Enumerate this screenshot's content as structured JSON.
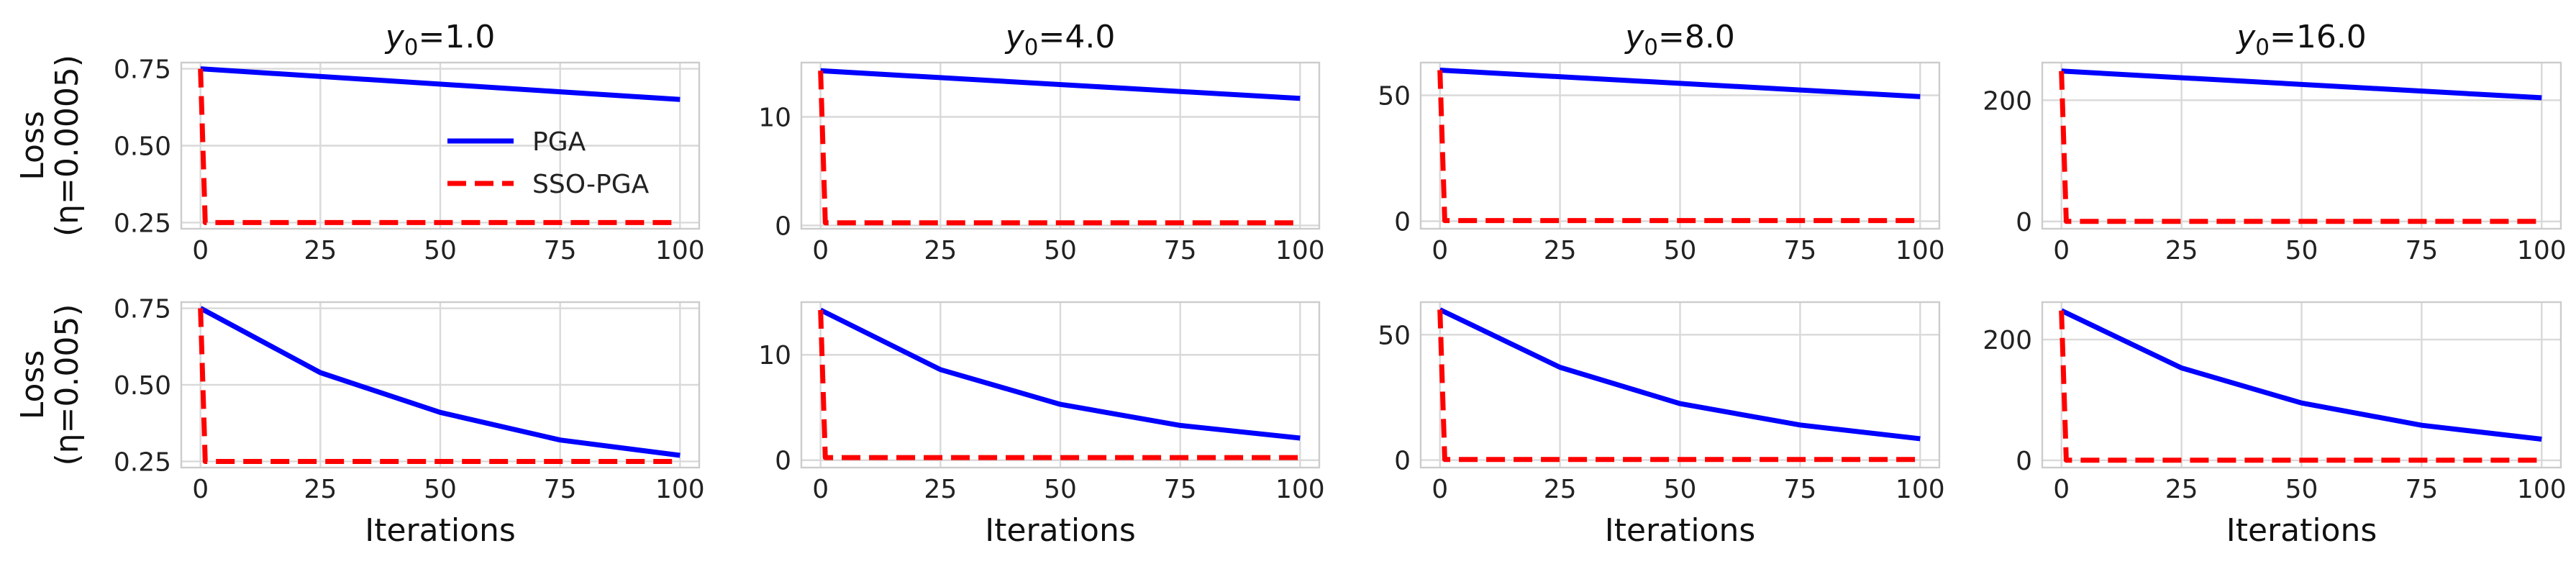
{
  "chart_data": {
    "type": "line",
    "colors": {
      "PGA": "#0000ff",
      "SSO-PGA": "#ff0000"
    },
    "legend": {
      "location": "upper-right of first panel",
      "entries": [
        "PGA",
        "SSO-PGA"
      ]
    },
    "grid": true,
    "x_ticks": [
      "0",
      "25",
      "50",
      "75",
      "100"
    ],
    "xlim": [
      -4,
      104
    ],
    "row_labels": [
      "Loss\n(η=0.0005)",
      "Loss\n(η=0.005)"
    ],
    "xlabel": "Iterations",
    "panels": [
      {
        "row": 0,
        "col": 0,
        "title": "y0=1.0",
        "ylim": [
          0.23,
          0.77
        ],
        "yticks": [
          "0.25",
          "0.50",
          "0.75"
        ],
        "series": [
          {
            "name": "PGA",
            "x": [
              0,
              100
            ],
            "y": [
              0.75,
              0.65
            ]
          },
          {
            "name": "SSO-PGA",
            "x": [
              0,
              1,
              2,
              100
            ],
            "y": [
              0.75,
              0.25,
              0.25,
              0.25
            ]
          }
        ]
      },
      {
        "row": 0,
        "col": 1,
        "title": "y0=4.0",
        "ylim": [
          -0.3,
          15.0
        ],
        "yticks": [
          "0",
          "10"
        ],
        "series": [
          {
            "name": "PGA",
            "x": [
              0,
              100
            ],
            "y": [
              14.25,
              11.7
            ]
          },
          {
            "name": "SSO-PGA",
            "x": [
              0,
              1,
              2,
              100
            ],
            "y": [
              14.25,
              0.25,
              0.25,
              0.25
            ]
          }
        ]
      },
      {
        "row": 0,
        "col": 2,
        "title": "y0=8.0",
        "ylim": [
          -3,
          63
        ],
        "yticks": [
          "0",
          "50"
        ],
        "series": [
          {
            "name": "PGA",
            "x": [
              0,
              100
            ],
            "y": [
              60,
              49.5
            ]
          },
          {
            "name": "SSO-PGA",
            "x": [
              0,
              1,
              2,
              100
            ],
            "y": [
              60,
              0.25,
              0.25,
              0.25
            ]
          }
        ]
      },
      {
        "row": 0,
        "col": 3,
        "title": "y0=16.0",
        "ylim": [
          -12,
          262
        ],
        "yticks": [
          "0",
          "200"
        ],
        "series": [
          {
            "name": "PGA",
            "x": [
              0,
              100
            ],
            "y": [
              248,
              204
            ]
          },
          {
            "name": "SSO-PGA",
            "x": [
              0,
              1,
              2,
              100
            ],
            "y": [
              248,
              0.25,
              0.25,
              0.25
            ]
          }
        ]
      },
      {
        "row": 1,
        "col": 0,
        "title": "",
        "ylim": [
          0.23,
          0.77
        ],
        "yticks": [
          "0.25",
          "0.50",
          "0.75"
        ],
        "series": [
          {
            "name": "PGA",
            "x": [
              0,
              25,
              50,
              75,
              100
            ],
            "y": [
              0.75,
              0.54,
              0.41,
              0.32,
              0.27
            ]
          },
          {
            "name": "SSO-PGA",
            "x": [
              0,
              1,
              2,
              100
            ],
            "y": [
              0.75,
              0.25,
              0.25,
              0.25
            ]
          }
        ]
      },
      {
        "row": 1,
        "col": 1,
        "title": "",
        "ylim": [
          -0.7,
          15.0
        ],
        "yticks": [
          "0",
          "10"
        ],
        "series": [
          {
            "name": "PGA",
            "x": [
              0,
              25,
              50,
              75,
              100
            ],
            "y": [
              14.25,
              8.6,
              5.3,
              3.3,
              2.1
            ]
          },
          {
            "name": "SSO-PGA",
            "x": [
              0,
              1,
              2,
              100
            ],
            "y": [
              14.25,
              0.25,
              0.25,
              0.25
            ]
          }
        ]
      },
      {
        "row": 1,
        "col": 2,
        "title": "",
        "ylim": [
          -3,
          63
        ],
        "yticks": [
          "0",
          "50"
        ],
        "series": [
          {
            "name": "PGA",
            "x": [
              0,
              25,
              50,
              75,
              100
            ],
            "y": [
              60,
              37,
              22.5,
              14,
              8.5
            ]
          },
          {
            "name": "SSO-PGA",
            "x": [
              0,
              1,
              2,
              100
            ],
            "y": [
              60,
              0.25,
              0.25,
              0.25
            ]
          }
        ]
      },
      {
        "row": 1,
        "col": 3,
        "title": "",
        "ylim": [
          -12,
          262
        ],
        "yticks": [
          "0",
          "200"
        ],
        "series": [
          {
            "name": "PGA",
            "x": [
              0,
              25,
              50,
              75,
              100
            ],
            "y": [
              248,
              153,
              95,
              58,
              35
            ]
          },
          {
            "name": "SSO-PGA",
            "x": [
              0,
              1,
              2,
              100
            ],
            "y": [
              248,
              0.25,
              0.25,
              0.25
            ]
          }
        ]
      }
    ]
  }
}
